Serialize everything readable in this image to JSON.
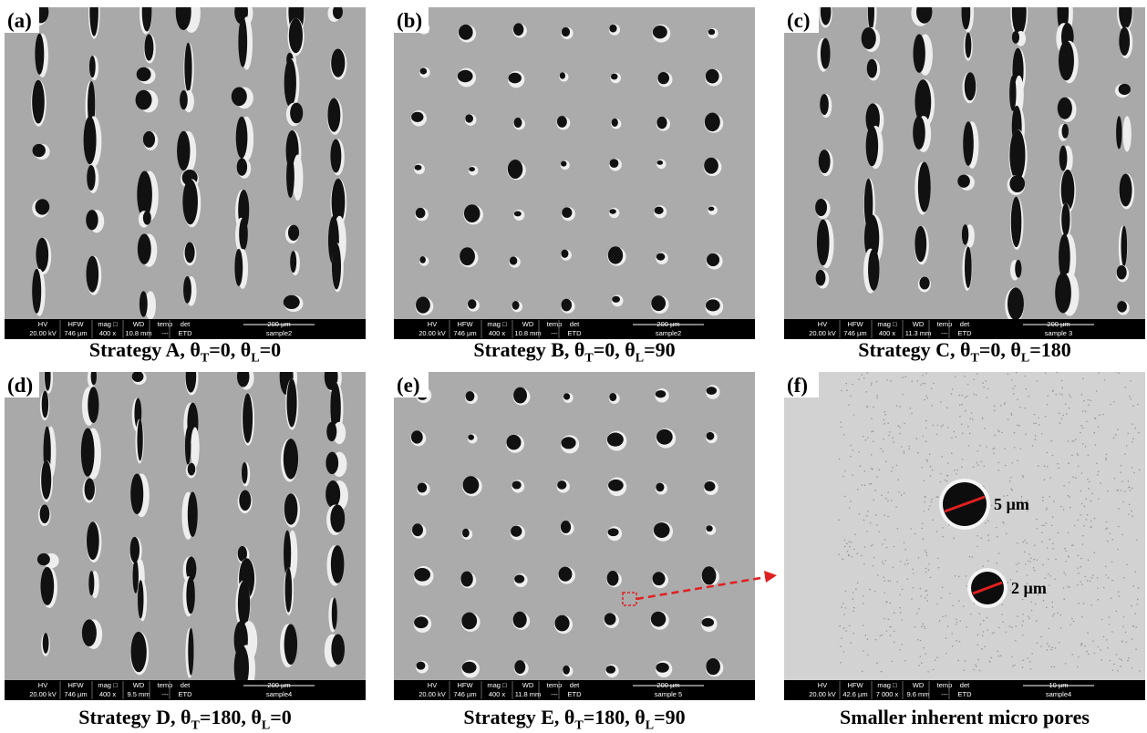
{
  "panels": [
    {
      "label": "(a)",
      "caption": [
        "Strategy A, θ",
        "T",
        "=0, θ",
        "L",
        "=0"
      ],
      "info": {
        "hv": [
          "HV",
          "20.00 kV"
        ],
        "hfw": [
          "HFW",
          "746 µm"
        ],
        "mag": [
          "mag □",
          "400 x"
        ],
        "wd": [
          "WD",
          "10.8 mm"
        ],
        "temp": [
          "temp",
          "---"
        ],
        "det": [
          "det",
          "ETD"
        ],
        "scale": "200 µm",
        "sample": "sample2"
      }
    },
    {
      "label": "(b)",
      "caption": [
        "Strategy B, θ",
        "T",
        "=0, θ",
        "L",
        "=90"
      ],
      "info": {
        "hv": [
          "HV",
          "20.00 kV"
        ],
        "hfw": [
          "HFW",
          "746 µm"
        ],
        "mag": [
          "mag □",
          "400 x"
        ],
        "wd": [
          "WD",
          "10.8 mm"
        ],
        "temp": [
          "temp",
          "---"
        ],
        "det": [
          "det",
          "ETD"
        ],
        "scale": "200 µm",
        "sample": "sample2"
      }
    },
    {
      "label": "(c)",
      "caption": [
        "Strategy C, θ",
        "T",
        "=0, θ",
        "L",
        "=180"
      ],
      "info": {
        "hv": [
          "HV",
          "20.00 kV"
        ],
        "hfw": [
          "HFW",
          "746 µm"
        ],
        "mag": [
          "mag □",
          "400 x"
        ],
        "wd": [
          "WD",
          "11.3 mm"
        ],
        "temp": [
          "temp",
          "---"
        ],
        "det": [
          "det",
          "ETD"
        ],
        "scale": "200 µm",
        "sample": "sample 3"
      }
    },
    {
      "label": "(d)",
      "caption": [
        "Strategy D, θ",
        "T",
        "=180, θ",
        "L",
        "=0"
      ],
      "info": {
        "hv": [
          "HV",
          "20.00 kV"
        ],
        "hfw": [
          "HFW",
          "746 µm"
        ],
        "mag": [
          "mag □",
          "400 x"
        ],
        "wd": [
          "WD",
          "9.5 mm"
        ],
        "temp": [
          "temp",
          "---"
        ],
        "det": [
          "det",
          "ETD"
        ],
        "scale": "200 µm",
        "sample": "sample4"
      }
    },
    {
      "label": "(e)",
      "caption": [
        "Strategy E, θ",
        "T",
        "=180, θ",
        "L",
        "=90"
      ],
      "info": {
        "hv": [
          "HV",
          "20.00 kV"
        ],
        "hfw": [
          "HFW",
          "746 µm"
        ],
        "mag": [
          "mag □",
          "400 x"
        ],
        "wd": [
          "WD",
          "11.8 mm"
        ],
        "temp": [
          "temp",
          "---"
        ],
        "det": [
          "det",
          "ETD"
        ],
        "scale": "200 µm",
        "sample": "sample 5"
      }
    },
    {
      "label": "(f)",
      "caption": [
        "Smaller inherent micro pores"
      ],
      "info": {
        "hv": [
          "HV",
          "20.00 kV"
        ],
        "hfw": [
          "HFW",
          "42.6 µm"
        ],
        "mag": [
          "mag □",
          "7 000 x"
        ],
        "wd": [
          "WD",
          "9.6 mm"
        ],
        "temp": [
          "temp",
          "---"
        ],
        "det": [
          "det",
          "ETD"
        ],
        "scale": "10 µm",
        "sample": "sample4"
      },
      "annotations": [
        "5 µm",
        "2 µm"
      ]
    }
  ]
}
